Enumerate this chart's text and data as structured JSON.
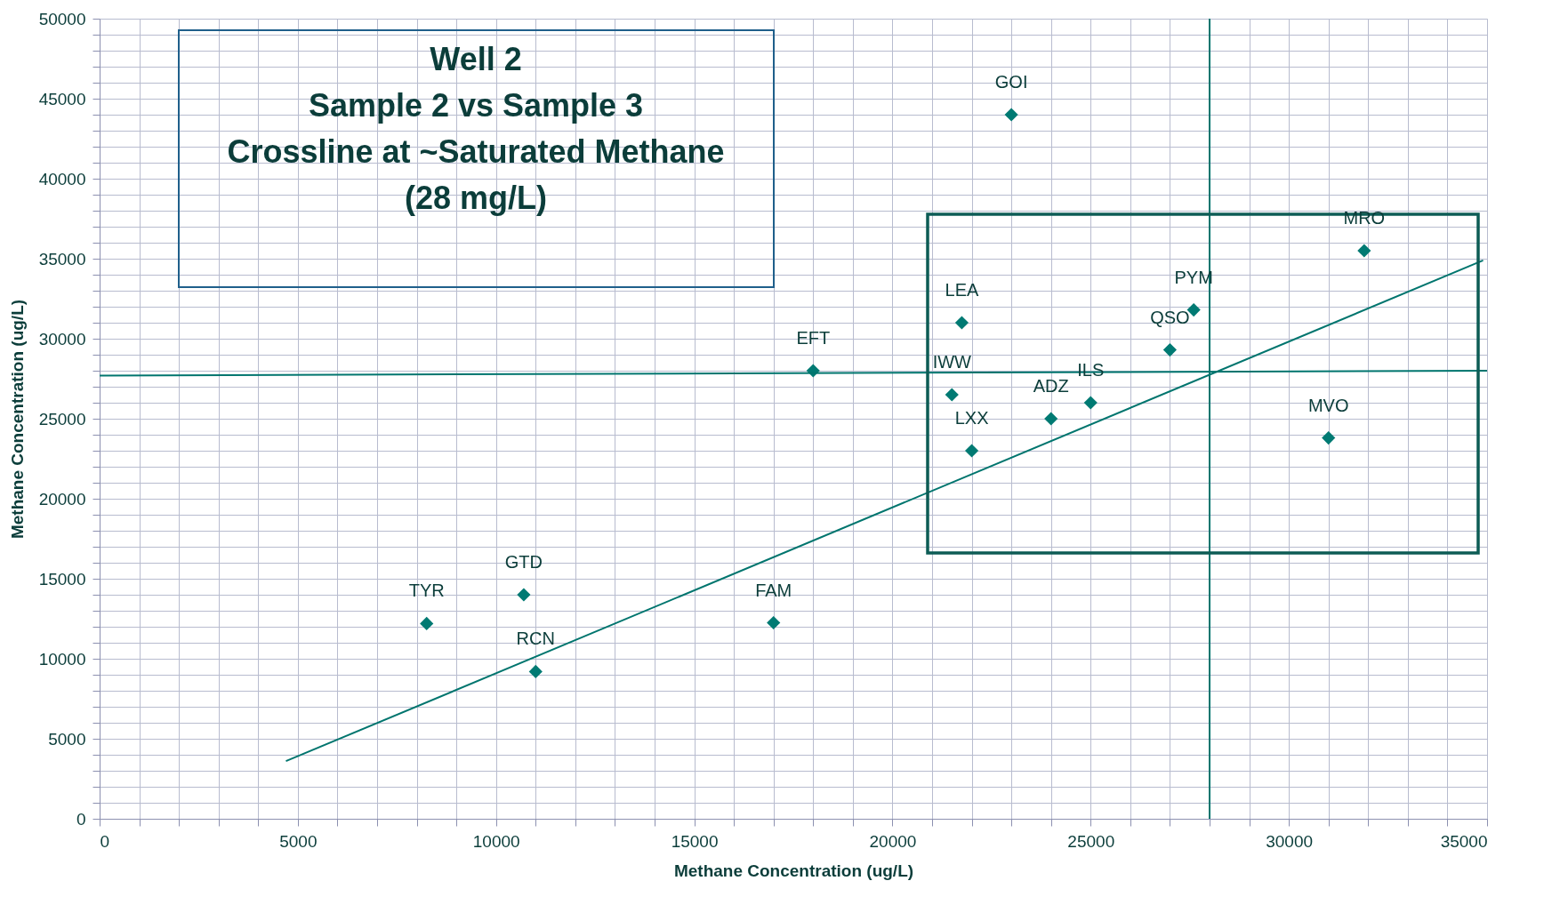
{
  "chart_data": {
    "type": "scatter",
    "title": "Well 2\nSample 2 vs Sample 3\nCrossline at ~Saturated Methane\n(28 mg/L)",
    "xlabel": "Methane Concentration (ug/L)",
    "ylabel": "Methane Concentration (ug/L)",
    "grid": true,
    "xlim": [
      0,
      35000
    ],
    "ylim": [
      0,
      50000
    ],
    "xticks": [
      0,
      {
        "value": 1000,
        "label": null
      },
      {
        "value": 2000,
        "label": null
      },
      {
        "value": 3000,
        "label": null
      },
      {
        "value": 4000,
        "label": null
      },
      5000,
      {
        "value": 6000,
        "label": null
      },
      {
        "value": 7000,
        "label": null
      },
      {
        "value": 8000,
        "label": null
      },
      {
        "value": 9000,
        "label": null
      },
      10000,
      {
        "value": 11000,
        "label": null
      },
      {
        "value": 12000,
        "label": null
      },
      {
        "value": 13000,
        "label": null
      },
      {
        "value": 14000,
        "label": null
      },
      15000,
      {
        "value": 16000,
        "label": null
      },
      {
        "value": 17000,
        "label": null
      },
      {
        "value": 18000,
        "label": null
      },
      {
        "value": 19000,
        "label": null
      },
      20000,
      {
        "value": 21000,
        "label": null
      },
      {
        "value": 22000,
        "label": null
      },
      {
        "value": 23000,
        "label": null
      },
      {
        "value": 24000,
        "label": null
      },
      25000,
      {
        "value": 26000,
        "label": null
      },
      {
        "value": 27000,
        "label": null
      },
      {
        "value": 28000,
        "label": null
      },
      {
        "value": 29000,
        "label": null
      },
      30000,
      {
        "value": 31000,
        "label": null
      },
      {
        "value": 32000,
        "label": null
      },
      {
        "value": 33000,
        "label": null
      },
      {
        "value": 34000,
        "label": null
      },
      35000
    ],
    "yticks": [
      0,
      {
        "value": 1000,
        "label": null
      },
      {
        "value": 2000,
        "label": null
      },
      {
        "value": 3000,
        "label": null
      },
      {
        "value": 4000,
        "label": null
      },
      5000,
      {
        "value": 6000,
        "label": null
      },
      {
        "value": 7000,
        "label": null
      },
      {
        "value": 8000,
        "label": null
      },
      {
        "value": 9000,
        "label": null
      },
      10000,
      {
        "value": 11000,
        "label": null
      },
      {
        "value": 12000,
        "label": null
      },
      {
        "value": 13000,
        "label": null
      },
      {
        "value": 14000,
        "label": null
      },
      15000,
      {
        "value": 16000,
        "label": null
      },
      {
        "value": 17000,
        "label": null
      },
      {
        "value": 18000,
        "label": null
      },
      {
        "value": 19000,
        "label": null
      },
      20000,
      {
        "value": 21000,
        "label": null
      },
      {
        "value": 22000,
        "label": null
      },
      {
        "value": 23000,
        "label": null
      },
      {
        "value": 24000,
        "label": null
      },
      25000,
      {
        "value": 26000,
        "label": null
      },
      {
        "value": 27000,
        "label": null
      },
      {
        "value": 28000,
        "label": null
      },
      {
        "value": 29000,
        "label": null
      },
      30000,
      {
        "value": 31000,
        "label": null
      },
      {
        "value": 32000,
        "label": null
      },
      {
        "value": 33000,
        "label": null
      },
      {
        "value": 34000,
        "label": null
      },
      35000,
      {
        "value": 36000,
        "label": null
      },
      {
        "value": 37000,
        "label": null
      },
      {
        "value": 38000,
        "label": null
      },
      {
        "value": 39000,
        "label": null
      },
      40000,
      {
        "value": 41000,
        "label": null
      },
      {
        "value": 42000,
        "label": null
      },
      {
        "value": 43000,
        "label": null
      },
      {
        "value": 44000,
        "label": null
      },
      45000,
      {
        "value": 46000,
        "label": null
      },
      {
        "value": 47000,
        "label": null
      },
      {
        "value": 48000,
        "label": null
      },
      {
        "value": 49000,
        "label": null
      },
      50000
    ],
    "series": [
      {
        "marker": "diamond",
        "color": "#007a73",
        "x": [
          8250,
          10700,
          11000,
          17000,
          18000,
          23000,
          21750,
          21500,
          22000,
          24000,
          25000,
          27000,
          27600,
          31000,
          31900
        ],
        "values": [
          12200,
          14000,
          9200,
          12250,
          28000,
          44000,
          31000,
          26500,
          23000,
          25000,
          26000,
          29300,
          31800,
          23800,
          35500
        ]
      },
      {
        "type": "line",
        "marker": "none",
        "color": "#00756e",
        "x": [
          4700,
          34900
        ],
        "values": [
          3600,
          34900
        ]
      },
      {
        "type": "line",
        "marker": "none",
        "color": "#00756e",
        "x": [
          0,
          35000
        ],
        "values": [
          27700,
          28000
        ]
      },
      {
        "type": "line",
        "marker": "none",
        "color": "#00756e",
        "x": [
          28000,
          28000
        ],
        "values": [
          0,
          50000
        ]
      }
    ],
    "annotations": [
      {
        "text": "TYR",
        "x": 8250,
        "y": 12200
      },
      {
        "text": "GTD",
        "x": 10700,
        "y": 14000
      },
      {
        "text": "RCN",
        "x": 11000,
        "y": 9200
      },
      {
        "text": "FAM",
        "x": 17000,
        "y": 12250
      },
      {
        "text": "EFT",
        "x": 18000,
        "y": 28000
      },
      {
        "text": "GOI",
        "x": 23000,
        "y": 44000
      },
      {
        "text": "LEA",
        "x": 21750,
        "y": 31000
      },
      {
        "text": "IWW",
        "x": 21500,
        "y": 26500
      },
      {
        "text": "LXX",
        "x": 22000,
        "y": 23000
      },
      {
        "text": "ADZ",
        "x": 24000,
        "y": 25000
      },
      {
        "text": "ILS",
        "x": 25000,
        "y": 26000
      },
      {
        "text": "QSO",
        "x": 27000,
        "y": 29300
      },
      {
        "text": "PYM",
        "x": 27600,
        "y": 31800
      },
      {
        "text": "MVO",
        "x": 31000,
        "y": 23800
      },
      {
        "text": "MRO",
        "x": 31900,
        "y": 35500
      }
    ]
  }
}
